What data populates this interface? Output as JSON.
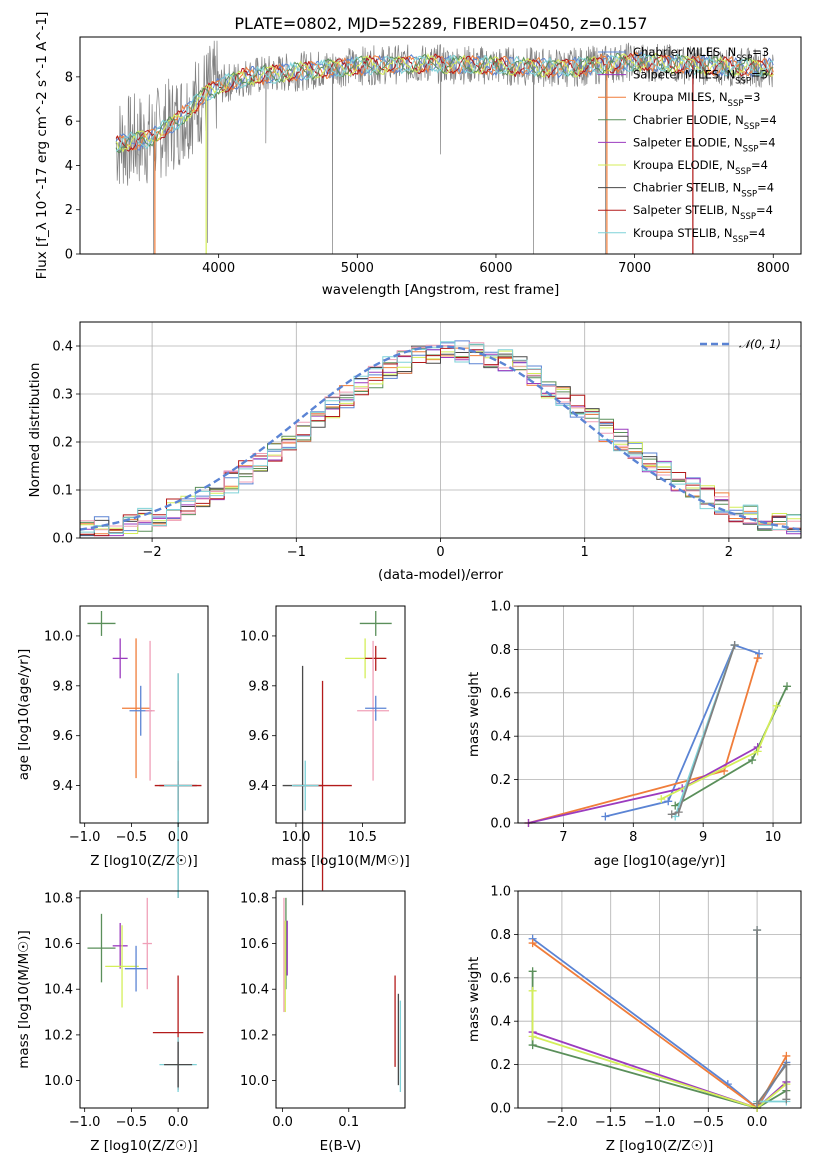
{
  "title": "PLATE=0802, MJD=52289, FIBERID=0450, z=0.157",
  "colors": {
    "blue": "#5b84d4",
    "orange": "#f07d3a",
    "green": "#5a8f5a",
    "purple": "#9b3bbf",
    "yellow": "#d4ee5a",
    "dark": "#4a4a4a",
    "red": "#b31b1b",
    "pink": "#f0a0b8",
    "cyan": "#7fd2d8",
    "gray": "#808080"
  },
  "chart_data": [
    {
      "id": "spectrum",
      "type": "line",
      "xlabel": "wavelength [Angstrom, rest frame]",
      "ylabel": "Flux [f_λ 10^-17 erg cm^-2 s^-1 A^-1]",
      "xlim": [
        3000,
        8200
      ],
      "ylim": [
        0,
        9.8
      ],
      "xticks": [
        "4000",
        "5000",
        "6000",
        "7000",
        "8000"
      ],
      "yticks": [
        "0",
        "2",
        "4",
        "6",
        "8"
      ],
      "legend_position": "top-right",
      "legend": [
        "Chabrier MILES, N_SSP=3",
        "Salpeter MILES, N_SSP=3",
        "Kroupa MILES, N_SSP=3",
        "Chabrier ELODIE, N_SSP=4",
        "Salpeter ELODIE, N_SSP=4",
        "Kroupa ELODIE, N_SSP=4",
        "Chabrier STELIB, N_SSP=4",
        "Salpeter STELIB, N_SSP=4",
        "Kroupa STELIB, N_SSP=4"
      ],
      "continuum_knots": [
        [
          3260,
          5.0
        ],
        [
          3500,
          5.2
        ],
        [
          3700,
          6.0
        ],
        [
          3900,
          7.2
        ],
        [
          4000,
          7.6
        ],
        [
          4200,
          8.0
        ],
        [
          4500,
          8.2
        ],
        [
          5000,
          8.5
        ],
        [
          5500,
          8.6
        ],
        [
          6000,
          8.5
        ],
        [
          6500,
          8.4
        ],
        [
          7000,
          8.7
        ],
        [
          7500,
          8.5
        ],
        [
          8000,
          8.4
        ]
      ]
    },
    {
      "id": "residuals",
      "type": "bar",
      "xlabel": "(data-model)/error",
      "ylabel": "Normed distribution",
      "xlim": [
        -2.5,
        2.5
      ],
      "ylim": [
        0,
        0.45
      ],
      "xticks": [
        "−2",
        "−1",
        "0",
        "1",
        "2"
      ],
      "yticks": [
        "0.0",
        "0.1",
        "0.2",
        "0.3",
        "0.4"
      ],
      "legend": [
        "𝒩(0, 1)"
      ],
      "legend_position": "top-right",
      "grid": true
    },
    {
      "id": "age_vs_Z",
      "type": "scatter",
      "xlabel": "Z [log10(Z/Z☉)]",
      "ylabel": "age  [log10(age/yr)]",
      "xlim": [
        -1.05,
        0.32
      ],
      "ylim": [
        9.25,
        10.12
      ],
      "xticks": [
        "−1.0",
        "−0.5",
        "0.0"
      ],
      "yticks": [
        "9.4",
        "9.6",
        "9.8",
        "10.0"
      ],
      "points": [
        {
          "x": -0.82,
          "y": 10.05,
          "xerr": 0.15,
          "yerr": 0.05,
          "c": "green"
        },
        {
          "x": -0.62,
          "y": 9.91,
          "xerr": 0.08,
          "yerr": 0.08,
          "c": "purple"
        },
        {
          "x": -0.45,
          "y": 9.71,
          "xerr": 0.15,
          "yerr": 0.28,
          "c": "orange"
        },
        {
          "x": -0.4,
          "y": 9.7,
          "xerr": 0.12,
          "yerr": 0.1,
          "c": "blue"
        },
        {
          "x": -0.3,
          "y": 9.7,
          "xerr": 0.05,
          "yerr": 0.28,
          "c": "pink"
        },
        {
          "x": 0.0,
          "y": 9.4,
          "xerr": 0.2,
          "yerr": 0.45,
          "c": "dark"
        },
        {
          "x": 0.0,
          "y": 9.4,
          "xerr": 0.25,
          "yerr": 0.1,
          "c": "red"
        },
        {
          "x": 0.0,
          "y": 9.4,
          "xerr": 0.15,
          "yerr": 0.45,
          "c": "cyan"
        }
      ]
    },
    {
      "id": "age_vs_mass",
      "type": "scatter",
      "xlabel": "mass [log10(M/M☉)]",
      "ylabel": "",
      "xlim": [
        9.85,
        10.82
      ],
      "ylim": [
        9.25,
        10.12
      ],
      "xticks": [
        "10.0",
        "10.5"
      ],
      "yticks": [
        "9.4",
        "9.6",
        "9.8",
        "10.0"
      ],
      "points": [
        {
          "x": 10.6,
          "y": 10.05,
          "xerr": 0.12,
          "yerr": 0.05,
          "c": "green"
        },
        {
          "x": 10.52,
          "y": 9.91,
          "xerr": 0.15,
          "yerr": 0.08,
          "c": "yellow"
        },
        {
          "x": 10.6,
          "y": 9.91,
          "xerr": 0.08,
          "yerr": 0.05,
          "c": "red"
        },
        {
          "x": 10.58,
          "y": 9.7,
          "xerr": 0.12,
          "yerr": 0.28,
          "c": "pink"
        },
        {
          "x": 10.6,
          "y": 9.71,
          "xerr": 0.08,
          "yerr": 0.05,
          "c": "blue"
        },
        {
          "x": 10.05,
          "y": 9.4,
          "xerr": 0.15,
          "yerr": 0.48,
          "c": "dark"
        },
        {
          "x": 10.2,
          "y": 9.4,
          "xerr": 0.22,
          "yerr": 0.42,
          "c": "red"
        },
        {
          "x": 10.07,
          "y": 9.4,
          "xerr": 0.1,
          "yerr": 0.1,
          "c": "cyan"
        }
      ]
    },
    {
      "id": "massweight_vs_age",
      "type": "line",
      "xlabel": "age  [log10(age/yr)]",
      "ylabel": "mass weight",
      "xlim": [
        6.35,
        10.4
      ],
      "ylim": [
        0,
        1.0
      ],
      "xticks": [
        "7",
        "8",
        "9",
        "10"
      ],
      "yticks": [
        "0.0",
        "0.2",
        "0.4",
        "0.6",
        "0.8",
        "1.0"
      ],
      "grid": true,
      "series": [
        {
          "c": "blue",
          "x": [
            7.6,
            8.5,
            9.45,
            9.8
          ],
          "y": [
            0.03,
            0.1,
            0.82,
            0.78
          ]
        },
        {
          "c": "orange",
          "x": [
            6.5,
            9.3,
            9.78
          ],
          "y": [
            0.0,
            0.24,
            0.76
          ]
        },
        {
          "c": "purple",
          "x": [
            6.5,
            8.7,
            9.78
          ],
          "y": [
            0.0,
            0.16,
            0.35
          ]
        },
        {
          "c": "green",
          "x": [
            8.6,
            9.7,
            10.2
          ],
          "y": [
            0.08,
            0.29,
            0.63
          ]
        },
        {
          "c": "yellow",
          "x": [
            8.4,
            9.78,
            10.05
          ],
          "y": [
            0.11,
            0.33,
            0.54
          ]
        },
        {
          "c": "cyan",
          "x": [
            8.6,
            9.45
          ],
          "y": [
            0.03,
            0.82
          ]
        },
        {
          "c": "gray",
          "x": [
            8.55,
            8.65,
            9.45
          ],
          "y": [
            0.04,
            0.05,
            0.82
          ]
        }
      ]
    },
    {
      "id": "mass_vs_Z",
      "type": "scatter",
      "xlabel": "Z [log10(Z/Z☉)]",
      "ylabel": "mass [log10(M/M☉)]",
      "xlim": [
        -1.05,
        0.32
      ],
      "ylim": [
        9.88,
        10.83
      ],
      "xticks": [
        "−1.0",
        "−0.5",
        "0.0"
      ],
      "yticks": [
        "10.0",
        "10.2",
        "10.4",
        "10.6",
        "10.8"
      ],
      "points": [
        {
          "x": -0.82,
          "y": 10.58,
          "xerr": 0.15,
          "yerr": 0.15,
          "c": "green"
        },
        {
          "x": -0.62,
          "y": 10.59,
          "xerr": 0.08,
          "yerr": 0.1,
          "c": "purple"
        },
        {
          "x": -0.6,
          "y": 10.5,
          "xerr": 0.18,
          "yerr": 0.18,
          "c": "yellow"
        },
        {
          "x": -0.33,
          "y": 10.6,
          "xerr": 0.05,
          "yerr": 0.2,
          "c": "pink"
        },
        {
          "x": -0.45,
          "y": 10.49,
          "xerr": 0.12,
          "yerr": 0.1,
          "c": "blue"
        },
        {
          "x": 0.0,
          "y": 10.21,
          "xerr": 0.27,
          "yerr": 0.25,
          "c": "red"
        },
        {
          "x": 0.0,
          "y": 10.07,
          "xerr": 0.2,
          "yerr": 0.12,
          "c": "cyan"
        },
        {
          "x": 0.0,
          "y": 10.07,
          "xerr": 0.15,
          "yerr": 0.1,
          "c": "dark"
        }
      ]
    },
    {
      "id": "mass_vs_ebv",
      "type": "scatter",
      "xlabel": "E(B-V)",
      "ylabel": "",
      "xlim": [
        -0.01,
        0.185
      ],
      "ylim": [
        9.88,
        10.83
      ],
      "xticks": [
        "0.0",
        "0.1"
      ],
      "yticks": [
        "10.0",
        "10.2",
        "10.4",
        "10.6",
        "10.8"
      ],
      "points": [
        {
          "x": 0.005,
          "y": 10.6,
          "xerr": 0.0,
          "yerr": 0.2,
          "c": "green"
        },
        {
          "x": 0.002,
          "y": 10.55,
          "xerr": 0.0,
          "yerr": 0.25,
          "c": "pink"
        },
        {
          "x": 0.004,
          "y": 10.5,
          "xerr": 0.0,
          "yerr": 0.2,
          "c": "yellow"
        },
        {
          "x": 0.007,
          "y": 10.58,
          "xerr": 0.0,
          "yerr": 0.12,
          "c": "purple"
        },
        {
          "x": 0.17,
          "y": 10.26,
          "xerr": 0.0,
          "yerr": 0.2,
          "c": "red"
        },
        {
          "x": 0.175,
          "y": 10.18,
          "xerr": 0.0,
          "yerr": 0.2,
          "c": "dark"
        },
        {
          "x": 0.178,
          "y": 10.15,
          "xerr": 0.0,
          "yerr": 0.2,
          "c": "cyan"
        }
      ]
    },
    {
      "id": "massweight_vs_Z",
      "type": "line",
      "xlabel": "Z [log10(Z/Z☉)]",
      "ylabel": "mass weight",
      "xlim": [
        -2.45,
        0.45
      ],
      "ylim": [
        0,
        1.0
      ],
      "xticks": [
        "−2.0",
        "−1.5",
        "−1.0",
        "−0.5",
        "0.0"
      ],
      "yticks": [
        "0.0",
        "0.2",
        "0.4",
        "0.6",
        "0.8",
        "1.0"
      ],
      "grid": true,
      "series": [
        {
          "c": "blue",
          "x": [
            -2.3,
            -0.3,
            0.0,
            0.3
          ],
          "y": [
            0.78,
            0.11,
            0.0,
            0.21
          ]
        },
        {
          "c": "orange",
          "x": [
            -2.3,
            0.0,
            0.3
          ],
          "y": [
            0.76,
            0.0,
            0.24
          ]
        },
        {
          "c": "purple",
          "x": [
            -2.3,
            0.0,
            0.3
          ],
          "y": [
            0.35,
            0.0,
            0.12
          ]
        },
        {
          "c": "green",
          "x": [
            -2.3,
            -2.3,
            0.0,
            0.3
          ],
          "y": [
            0.63,
            0.29,
            0.0,
            0.08
          ]
        },
        {
          "c": "yellow",
          "x": [
            -2.3,
            -2.3,
            0.0,
            0.3
          ],
          "y": [
            0.54,
            0.33,
            0.0,
            0.11
          ]
        },
        {
          "c": "cyan",
          "x": [
            0.0,
            0.0,
            0.3
          ],
          "y": [
            0.82,
            0.03,
            0.03
          ]
        },
        {
          "c": "gray",
          "x": [
            0.0,
            0.0,
            0.3,
            0.3
          ],
          "y": [
            0.82,
            0.02,
            0.2,
            0.04
          ]
        }
      ]
    }
  ]
}
